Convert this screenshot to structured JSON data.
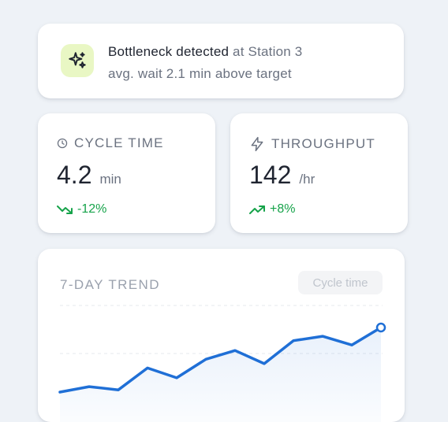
{
  "alert": {
    "title_strong": "Bottleneck detected",
    "title_rest": " at Station 3",
    "subtitle": "avg. wait 2.1 min above target",
    "icon": "sparkles-icon"
  },
  "metrics": [
    {
      "label": "CYCLE TIME",
      "value": "4.2",
      "unit": "min",
      "delta": "-12%",
      "icon": "clock-icon",
      "delta_icon": "trending-down-icon"
    },
    {
      "label": "THROUGHPUT",
      "value": "142",
      "unit": "/hr",
      "delta": "+8%",
      "icon": "bolt-icon",
      "delta_icon": "trending-up-icon"
    }
  ],
  "trend": {
    "title": "7-DAY TREND",
    "selector": "Cycle time"
  },
  "colors": {
    "accent": "#1f6fd6",
    "positive": "#16a34a",
    "alert_icon_bg": "#e9f7c4"
  },
  "chart_data": {
    "type": "line",
    "series": [
      {
        "values": [
          3.0,
          3.5,
          3.2,
          5.2,
          4.3,
          6.0,
          6.8,
          5.6,
          7.7,
          8.1,
          7.3,
          8.9
        ]
      }
    ],
    "grid": true
  }
}
